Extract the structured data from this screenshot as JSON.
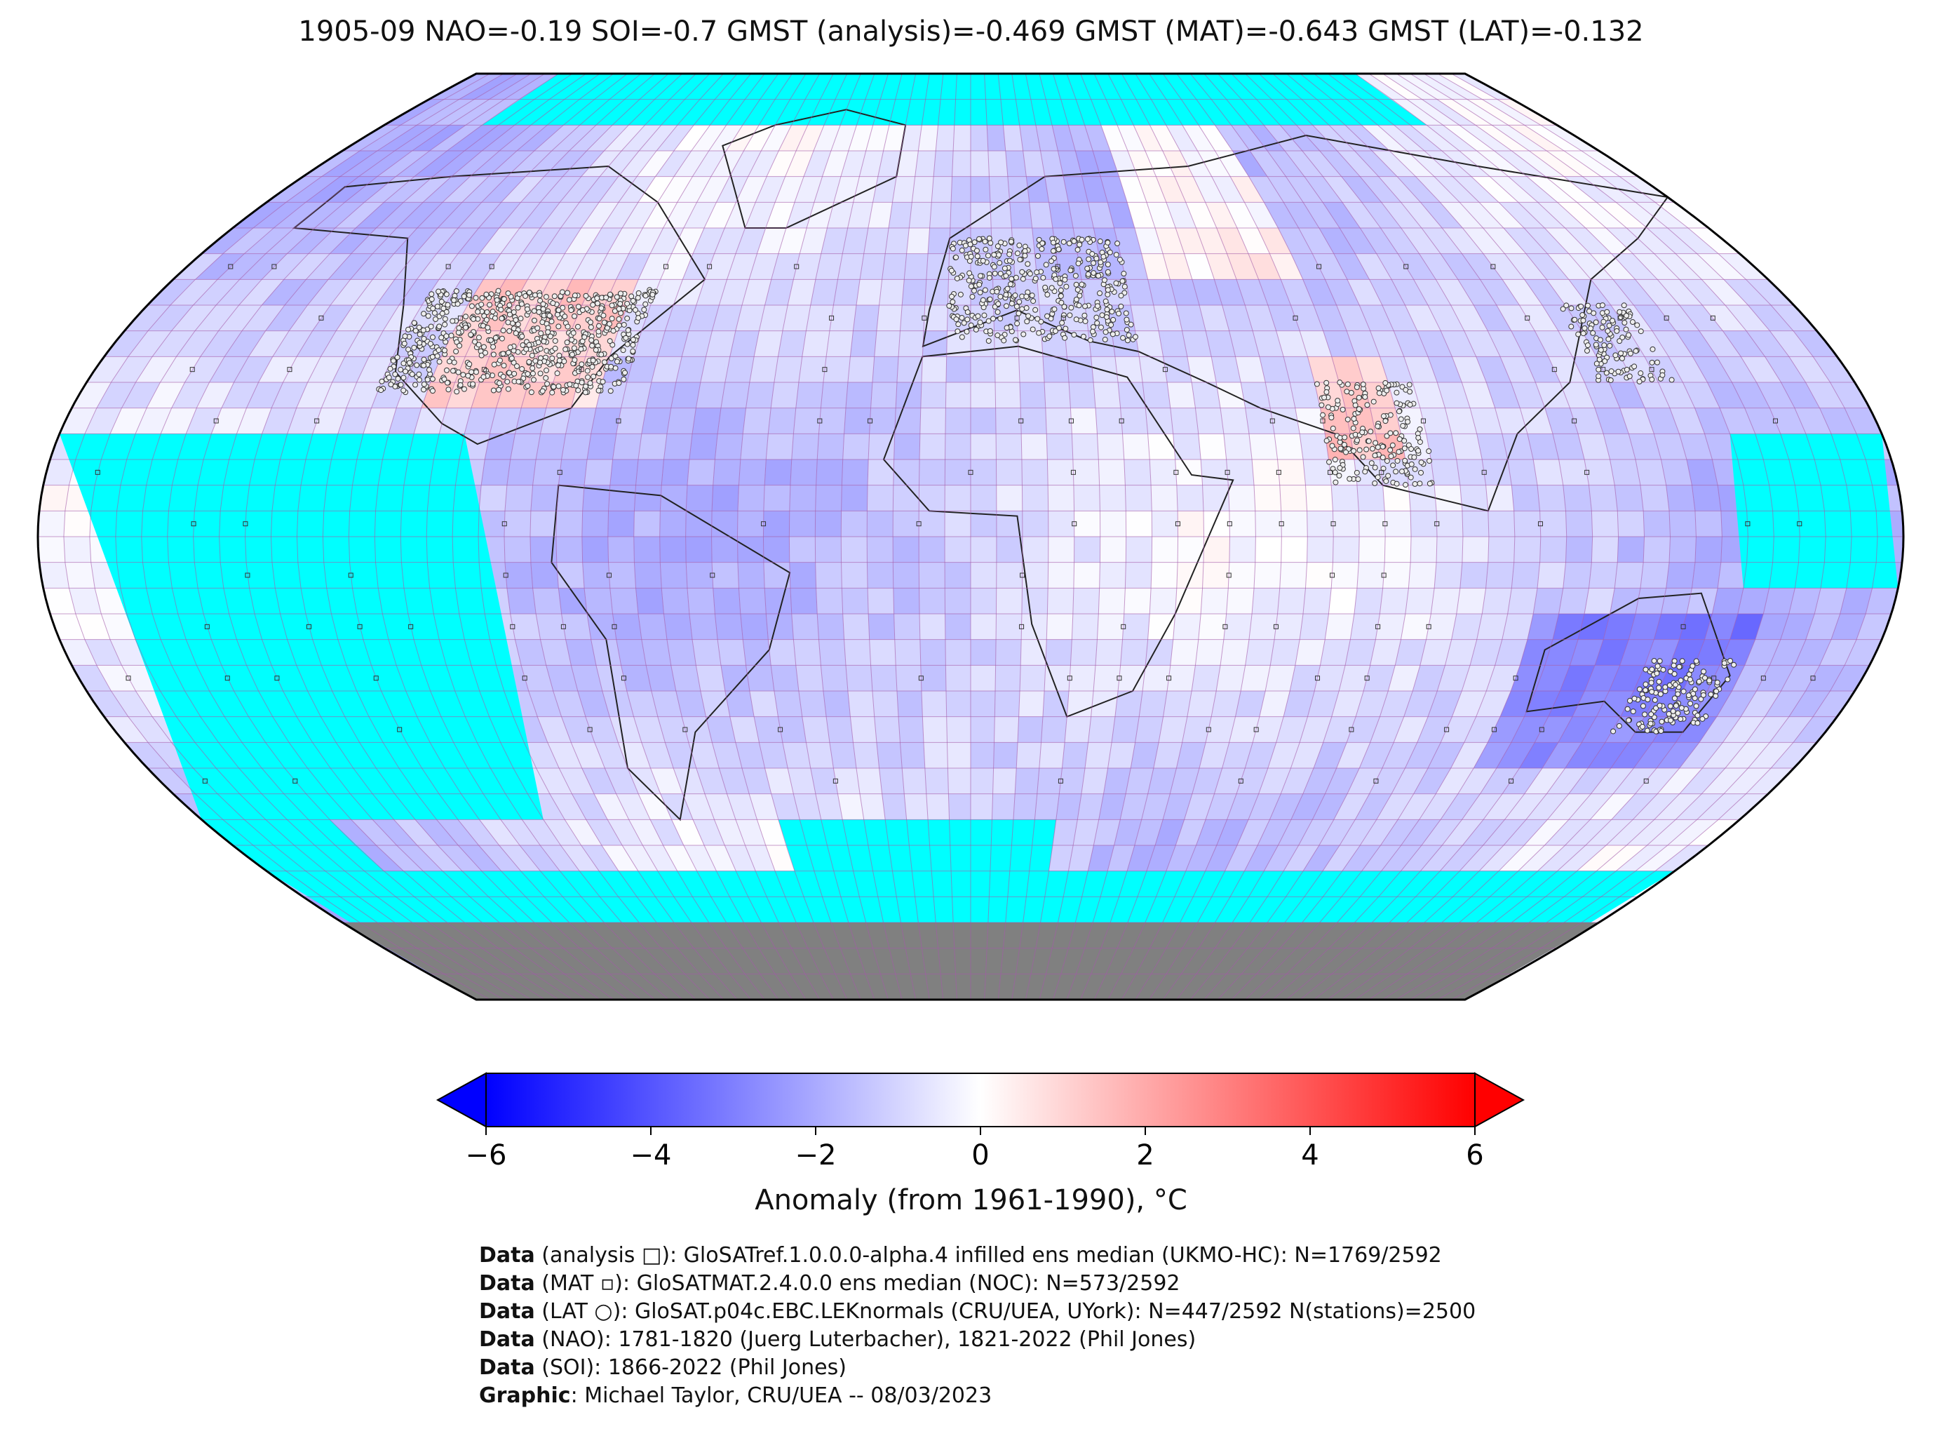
{
  "title": "1905-09 NAO=-0.19 SOI=-0.7 GMST (analysis)=-0.469 GMST (MAT)=-0.643 GMST (LAT)=-0.132",
  "colorbar": {
    "label": "Anomaly (from 1961-1990), °C",
    "ticks": [
      "−6",
      "−4",
      "−2",
      "0",
      "2",
      "4",
      "6"
    ],
    "tick_values": [
      -6,
      -4,
      -2,
      0,
      2,
      4,
      6
    ],
    "range": [
      -6,
      6
    ],
    "colormap": [
      "#0000ff",
      "#ffffff",
      "#ff0000"
    ],
    "extend": "both"
  },
  "map": {
    "projection": "Robinson",
    "no_data_color": "#00ffff",
    "land_ice_color": "#808080",
    "grid_color": "#a35aa8"
  },
  "credits": [
    {
      "bold": "Data",
      "rest": " (analysis □): GloSATref.1.0.0.0-alpha.4 infilled ens median (UKMO-HC): N=1769/2592"
    },
    {
      "bold": "Data",
      "rest": " (MAT ▫): GloSATMAT.2.4.0.0 ens median (NOC): N=573/2592"
    },
    {
      "bold": "Data",
      "rest": " (LAT ○): GloSAT.p04c.EBC.LEKnormals (CRU/UEA, UYork): N=447/2592 N(stations)=2500"
    },
    {
      "bold": "Data",
      "rest": " (NAO): 1781-1820 (Juerg Luterbacher), 1821-2022 (Phil Jones)"
    },
    {
      "bold": "Data",
      "rest": " (SOI): 1866-2022 (Phil Jones)"
    },
    {
      "bold": "Graphic",
      "rest": ": Michael Taylor, CRU/UEA -- 08/03/2023"
    }
  ]
}
